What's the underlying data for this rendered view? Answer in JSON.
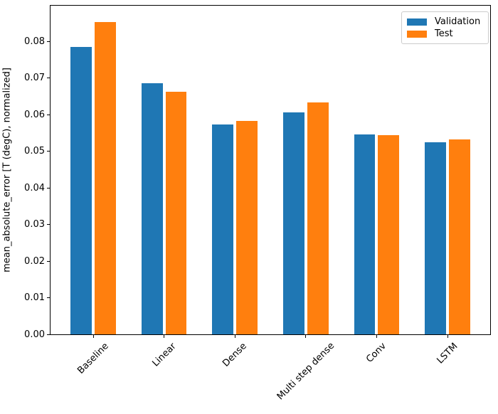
{
  "figure": {
    "background": "#ffffff",
    "axis_color": "#000000",
    "text_color": "#000000"
  },
  "chart_data": {
    "type": "bar",
    "title": "",
    "xlabel": "",
    "ylabel": "mean_absolute_error [T (degC), normalized]",
    "categories": [
      "Baseline",
      "Linear",
      "Dense",
      "Multi step dense",
      "Conv",
      "LSTM"
    ],
    "series": [
      {
        "name": "Validation",
        "color": "#1f77b4",
        "values": [
          0.0785,
          0.0686,
          0.0572,
          0.0606,
          0.0545,
          0.0524
        ]
      },
      {
        "name": "Test",
        "color": "#ff7f0e",
        "values": [
          0.0852,
          0.0663,
          0.0582,
          0.0634,
          0.0543,
          0.0533
        ]
      }
    ],
    "ylim": [
      0,
      0.0897
    ],
    "yticks": [
      "0.00",
      "0.01",
      "0.02",
      "0.03",
      "0.04",
      "0.05",
      "0.06",
      "0.07",
      "0.08"
    ],
    "xtick_rotation_deg": 45,
    "grid": false,
    "legend": {
      "position": "upper right",
      "border_color": "#cccccc",
      "entries": [
        "Validation",
        "Test"
      ]
    }
  }
}
